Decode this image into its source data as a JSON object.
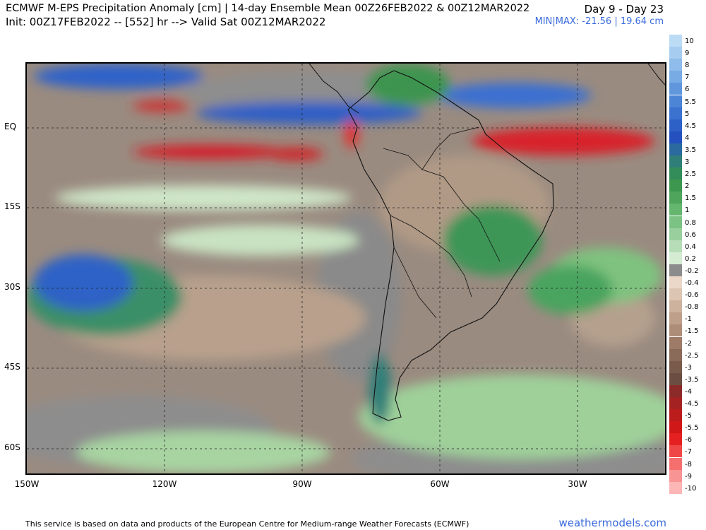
{
  "header": {
    "title": "ECMWF M-EPS Precipitation Anomaly [cm] | 14-day Ensemble Mean 00Z26FEB2022 & 00Z12MAR2022",
    "init": "Init: 00Z17FEB2022 -- [552] hr --> Valid Sat 00Z12MAR2022",
    "days": "Day 9 - Day 23",
    "minmax": "MIN|MAX: -21.56 | 19.64 cm"
  },
  "axes": {
    "lat_labels": [
      "EQ",
      "15S",
      "30S",
      "45S",
      "60S"
    ],
    "lon_labels": [
      "150W",
      "120W",
      "90W",
      "60W",
      "30W"
    ]
  },
  "legend": {
    "levels": [
      "10",
      "9",
      "8",
      "7",
      "6",
      "5.5",
      "5",
      "4.5",
      "4",
      "3.5",
      "3",
      "2.5",
      "2",
      "1.5",
      "1",
      "0.8",
      "0.6",
      "0.4",
      "0.2",
      "-0.2",
      "-0.4",
      "-0.6",
      "-0.8",
      "-1",
      "-1.5",
      "-2",
      "-2.5",
      "-3",
      "-3.5",
      "-4",
      "-4.5",
      "-5",
      "-5.5",
      "-6",
      "-7",
      "-8",
      "-9",
      "-10"
    ],
    "colors": [
      "#bcdcf5",
      "#a6cdf0",
      "#8fbcea",
      "#78aae3",
      "#6096dc",
      "#4c84d6",
      "#3b72d0",
      "#2d61c8",
      "#2451bf",
      "#2b6a9f",
      "#2f7f78",
      "#338d5a",
      "#3d974e",
      "#4fa55c",
      "#64b56e",
      "#7cc285",
      "#98cf9d",
      "#b6ddb7",
      "#d5ecd3",
      "#8c8c8c",
      "#ead7c8",
      "#dcc5b3",
      "#cdb29e",
      "#be9f8a",
      "#ae8d78",
      "#9d7b67",
      "#8a6a58",
      "#785b4b",
      "#6b4e41",
      "#8c2a2a",
      "#a52222",
      "#bb1c1c",
      "#d11818",
      "#e42020",
      "#ef4747",
      "#f56f6f",
      "#f99494",
      "#fcb6b6"
    ]
  },
  "footer": "This service is based on data and products of the European Centre for Medium-range Weather Forecasts (ECMWF)",
  "watermark": "weathermodels.com"
}
